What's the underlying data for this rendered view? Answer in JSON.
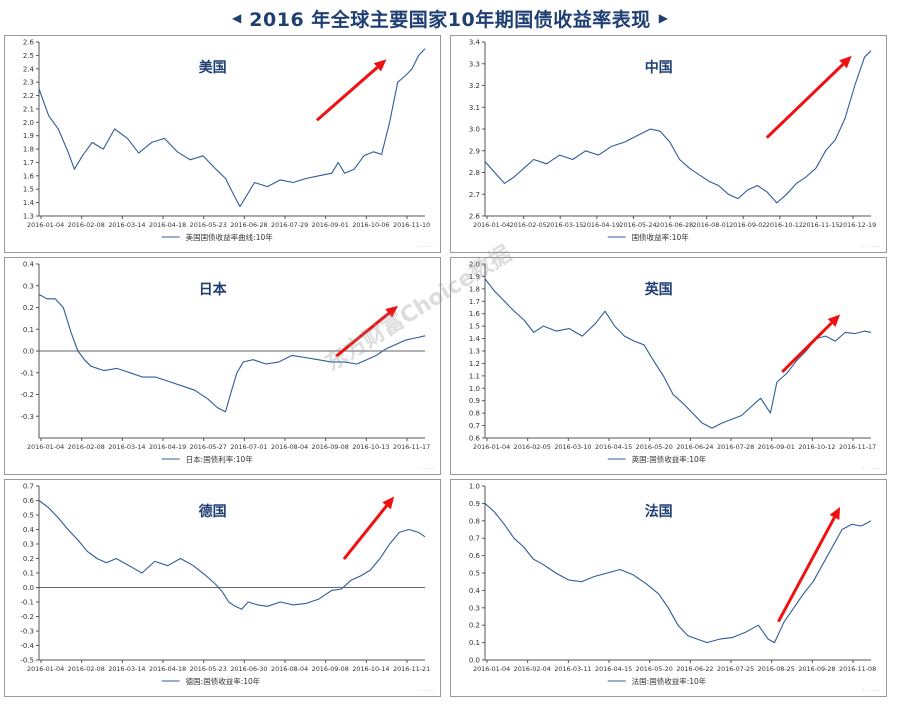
{
  "title": "2016 年全球主要国家10年期国债收益率表现",
  "title_arrow_left": "◀",
  "title_arrow_right": "▶",
  "watermark": "东方财富Choice数据",
  "colors": {
    "line": "#2e5c9a",
    "trend_arrow": "#ee1111",
    "title": "#1f3f73",
    "panel_border": "#9a9a9a",
    "zero_line": "#333333"
  },
  "chart_data": [
    {
      "type": "line",
      "title": "美国",
      "legend": "美国国债收益率曲线:10年",
      "ylim": [
        1.3,
        2.6
      ],
      "yticks": [
        "1.3",
        "1.4",
        "1.5",
        "1.6",
        "1.7",
        "1.8",
        "1.9",
        "2.0",
        "2.1",
        "2.2",
        "2.3",
        "2.4",
        "2.5",
        "2.6"
      ],
      "xticks": [
        "2016-01-04",
        "2016-02-08",
        "2016-03-14",
        "2016-04-18",
        "2016-05-23",
        "2016-06-28",
        "2016-07-29",
        "2016-09-01",
        "2016-10-06",
        "2016-11-10"
      ],
      "zero_line": false,
      "series_points": [
        [
          0,
          2.25
        ],
        [
          6,
          2.05
        ],
        [
          12,
          1.95
        ],
        [
          18,
          1.78
        ],
        [
          22,
          1.65
        ],
        [
          27,
          1.75
        ],
        [
          33,
          1.85
        ],
        [
          40,
          1.8
        ],
        [
          47,
          1.95
        ],
        [
          55,
          1.88
        ],
        [
          62,
          1.77
        ],
        [
          70,
          1.85
        ],
        [
          78,
          1.88
        ],
        [
          86,
          1.78
        ],
        [
          94,
          1.72
        ],
        [
          102,
          1.75
        ],
        [
          110,
          1.65
        ],
        [
          116,
          1.58
        ],
        [
          121,
          1.46
        ],
        [
          125,
          1.37
        ],
        [
          129,
          1.45
        ],
        [
          134,
          1.55
        ],
        [
          142,
          1.52
        ],
        [
          150,
          1.57
        ],
        [
          158,
          1.55
        ],
        [
          166,
          1.58
        ],
        [
          174,
          1.6
        ],
        [
          182,
          1.62
        ],
        [
          186,
          1.7
        ],
        [
          190,
          1.62
        ],
        [
          196,
          1.65
        ],
        [
          202,
          1.75
        ],
        [
          208,
          1.78
        ],
        [
          213,
          1.76
        ],
        [
          218,
          2.0
        ],
        [
          223,
          2.3
        ],
        [
          228,
          2.35
        ],
        [
          232,
          2.4
        ],
        [
          236,
          2.5
        ],
        [
          240,
          2.55
        ]
      ],
      "trend_arrow": [
        [
          0.72,
          0.45
        ],
        [
          0.9,
          0.1
        ]
      ]
    },
    {
      "type": "line",
      "title": "中国",
      "legend": "国债收益率:10年",
      "ylim": [
        2.6,
        3.4
      ],
      "yticks": [
        "2.6",
        "2.7",
        "2.8",
        "2.9",
        "3.0",
        "3.1",
        "3.2",
        "3.3",
        "3.4"
      ],
      "xticks": [
        "2016-01-04",
        "2016-02-05",
        "2016-03-15",
        "2016-04-19",
        "2016-05-24",
        "2016-06-28",
        "2016-08-01",
        "2016-09-02",
        "2016-10-12",
        "2016-11-15",
        "2016-12-19"
      ],
      "zero_line": false,
      "series_points": [
        [
          0,
          2.85
        ],
        [
          6,
          2.8
        ],
        [
          12,
          2.75
        ],
        [
          18,
          2.78
        ],
        [
          24,
          2.82
        ],
        [
          30,
          2.86
        ],
        [
          38,
          2.84
        ],
        [
          46,
          2.88
        ],
        [
          54,
          2.86
        ],
        [
          62,
          2.9
        ],
        [
          70,
          2.88
        ],
        [
          78,
          2.92
        ],
        [
          86,
          2.94
        ],
        [
          94,
          2.97
        ],
        [
          102,
          3.0
        ],
        [
          108,
          2.99
        ],
        [
          114,
          2.94
        ],
        [
          120,
          2.86
        ],
        [
          126,
          2.82
        ],
        [
          132,
          2.79
        ],
        [
          138,
          2.76
        ],
        [
          144,
          2.74
        ],
        [
          150,
          2.7
        ],
        [
          156,
          2.68
        ],
        [
          162,
          2.72
        ],
        [
          168,
          2.74
        ],
        [
          174,
          2.71
        ],
        [
          180,
          2.66
        ],
        [
          186,
          2.7
        ],
        [
          192,
          2.75
        ],
        [
          198,
          2.78
        ],
        [
          204,
          2.82
        ],
        [
          210,
          2.9
        ],
        [
          216,
          2.95
        ],
        [
          222,
          3.05
        ],
        [
          228,
          3.2
        ],
        [
          234,
          3.33
        ],
        [
          238,
          3.36
        ]
      ],
      "trend_arrow": [
        [
          0.73,
          0.55
        ],
        [
          0.95,
          0.08
        ]
      ]
    },
    {
      "type": "line",
      "title": "日本",
      "legend": "日本:国债利率:10年",
      "ylim": [
        -0.4,
        0.4
      ],
      "yticks": [
        "0.4",
        "0.3",
        "0.2",
        "0.1",
        "0.0",
        "-0.1",
        "-0.2",
        "-0.3"
      ],
      "xticks": [
        "2016-01-04",
        "2016-02-08",
        "2016-03-14",
        "2016-04-19",
        "2016-05-27",
        "2016-07-01",
        "2016-08-04",
        "2016-09-08",
        "2016-10-13",
        "2016-11-17"
      ],
      "zero_line": 0,
      "series_points": [
        [
          0,
          0.26
        ],
        [
          5,
          0.24
        ],
        [
          10,
          0.24
        ],
        [
          15,
          0.2
        ],
        [
          20,
          0.08
        ],
        [
          24,
          0.0
        ],
        [
          28,
          -0.04
        ],
        [
          32,
          -0.07
        ],
        [
          40,
          -0.09
        ],
        [
          48,
          -0.08
        ],
        [
          56,
          -0.1
        ],
        [
          64,
          -0.12
        ],
        [
          72,
          -0.12
        ],
        [
          80,
          -0.14
        ],
        [
          88,
          -0.16
        ],
        [
          96,
          -0.18
        ],
        [
          104,
          -0.22
        ],
        [
          110,
          -0.26
        ],
        [
          115,
          -0.28
        ],
        [
          118,
          -0.2
        ],
        [
          122,
          -0.1
        ],
        [
          126,
          -0.05
        ],
        [
          132,
          -0.04
        ],
        [
          140,
          -0.06
        ],
        [
          148,
          -0.05
        ],
        [
          156,
          -0.02
        ],
        [
          164,
          -0.03
        ],
        [
          172,
          -0.04
        ],
        [
          180,
          -0.05
        ],
        [
          188,
          -0.05
        ],
        [
          196,
          -0.06
        ],
        [
          202,
          -0.04
        ],
        [
          208,
          -0.02
        ],
        [
          214,
          0.01
        ],
        [
          220,
          0.03
        ],
        [
          226,
          0.05
        ],
        [
          232,
          0.06
        ],
        [
          238,
          0.07
        ]
      ],
      "trend_arrow": [
        [
          0.77,
          0.53
        ],
        [
          0.93,
          0.24
        ]
      ]
    },
    {
      "type": "line",
      "title": "英国",
      "legend": "英国:国债收益率:10年",
      "ylim": [
        0.6,
        2.0
      ],
      "yticks": [
        "2.0",
        "1.9",
        "1.8",
        "1.7",
        "1.6",
        "1.5",
        "1.4",
        "1.3",
        "1.2",
        "1.1",
        "1.0",
        "0.9",
        "0.8",
        "0.7",
        "0.6"
      ],
      "xticks": [
        "2016-01-04",
        "2016-02-05",
        "2016-03-10",
        "2016-04-15",
        "2016-05-20",
        "2016-06-24",
        "2016-07-28",
        "2016-09-01",
        "2016-10-12",
        "2016-11-17"
      ],
      "zero_line": false,
      "series_points": [
        [
          0,
          1.88
        ],
        [
          6,
          1.78
        ],
        [
          12,
          1.7
        ],
        [
          18,
          1.62
        ],
        [
          24,
          1.55
        ],
        [
          30,
          1.45
        ],
        [
          36,
          1.5
        ],
        [
          44,
          1.46
        ],
        [
          52,
          1.48
        ],
        [
          60,
          1.42
        ],
        [
          68,
          1.52
        ],
        [
          74,
          1.62
        ],
        [
          80,
          1.5
        ],
        [
          86,
          1.42
        ],
        [
          92,
          1.38
        ],
        [
          98,
          1.35
        ],
        [
          104,
          1.22
        ],
        [
          110,
          1.1
        ],
        [
          116,
          0.95
        ],
        [
          122,
          0.88
        ],
        [
          128,
          0.8
        ],
        [
          134,
          0.72
        ],
        [
          140,
          0.68
        ],
        [
          146,
          0.72
        ],
        [
          152,
          0.75
        ],
        [
          158,
          0.78
        ],
        [
          164,
          0.85
        ],
        [
          170,
          0.92
        ],
        [
          176,
          0.8
        ],
        [
          180,
          1.05
        ],
        [
          186,
          1.12
        ],
        [
          192,
          1.22
        ],
        [
          198,
          1.3
        ],
        [
          204,
          1.4
        ],
        [
          210,
          1.42
        ],
        [
          216,
          1.38
        ],
        [
          222,
          1.45
        ],
        [
          228,
          1.44
        ],
        [
          234,
          1.46
        ],
        [
          238,
          1.45
        ]
      ],
      "trend_arrow": [
        [
          0.77,
          0.62
        ],
        [
          0.92,
          0.29
        ]
      ]
    },
    {
      "type": "line",
      "title": "德国",
      "legend": "德国:国债收益率:10年",
      "ylim": [
        -0.5,
        0.7
      ],
      "yticks": [
        "0.7",
        "0.6",
        "0.5",
        "0.4",
        "0.3",
        "0.2",
        "0.1",
        "0.0",
        "-0.1",
        "-0.2",
        "-0.3",
        "-0.4",
        "-0.5"
      ],
      "xticks": [
        "2016-01-04",
        "2016-02-08",
        "2016-03-14",
        "2016-04-18",
        "2016-05-23",
        "2016-06-30",
        "2016-08-04",
        "2016-09-08",
        "2016-10-14",
        "2016-11-21"
      ],
      "zero_line": 0,
      "series_points": [
        [
          0,
          0.6
        ],
        [
          6,
          0.55
        ],
        [
          12,
          0.48
        ],
        [
          18,
          0.4
        ],
        [
          24,
          0.33
        ],
        [
          30,
          0.25
        ],
        [
          36,
          0.2
        ],
        [
          42,
          0.17
        ],
        [
          48,
          0.2
        ],
        [
          56,
          0.15
        ],
        [
          64,
          0.1
        ],
        [
          72,
          0.18
        ],
        [
          80,
          0.15
        ],
        [
          88,
          0.2
        ],
        [
          96,
          0.15
        ],
        [
          104,
          0.08
        ],
        [
          110,
          0.02
        ],
        [
          114,
          -0.03
        ],
        [
          118,
          -0.1
        ],
        [
          122,
          -0.13
        ],
        [
          126,
          -0.15
        ],
        [
          130,
          -0.1
        ],
        [
          136,
          -0.12
        ],
        [
          142,
          -0.13
        ],
        [
          150,
          -0.1
        ],
        [
          158,
          -0.12
        ],
        [
          166,
          -0.11
        ],
        [
          174,
          -0.08
        ],
        [
          182,
          -0.02
        ],
        [
          188,
          -0.01
        ],
        [
          194,
          0.05
        ],
        [
          200,
          0.08
        ],
        [
          206,
          0.12
        ],
        [
          212,
          0.2
        ],
        [
          218,
          0.3
        ],
        [
          224,
          0.38
        ],
        [
          230,
          0.4
        ],
        [
          236,
          0.38
        ],
        [
          240,
          0.35
        ]
      ],
      "trend_arrow": [
        [
          0.79,
          0.42
        ],
        [
          0.92,
          0.06
        ]
      ]
    },
    {
      "type": "line",
      "title": "法国",
      "legend": "法国:国债收益率:10年",
      "ylim": [
        0.0,
        1.0
      ],
      "yticks": [
        "1.0",
        "0.9",
        "0.8",
        "0.7",
        "0.6",
        "0.5",
        "0.4",
        "0.3",
        "0.2",
        "0.1",
        "0.0"
      ],
      "xticks": [
        "2016-01-04",
        "2016-02-04",
        "2016-03-11",
        "2016-04-15",
        "2016-05-20",
        "2016-06-22",
        "2016-07-25",
        "2016-08-25",
        "2016-09-28",
        "2016-11-08"
      ],
      "zero_line": false,
      "series_points": [
        [
          0,
          0.9
        ],
        [
          6,
          0.85
        ],
        [
          12,
          0.78
        ],
        [
          18,
          0.7
        ],
        [
          24,
          0.65
        ],
        [
          30,
          0.58
        ],
        [
          36,
          0.55
        ],
        [
          44,
          0.5
        ],
        [
          52,
          0.46
        ],
        [
          60,
          0.45
        ],
        [
          68,
          0.48
        ],
        [
          76,
          0.5
        ],
        [
          84,
          0.52
        ],
        [
          92,
          0.49
        ],
        [
          100,
          0.44
        ],
        [
          108,
          0.38
        ],
        [
          114,
          0.3
        ],
        [
          120,
          0.2
        ],
        [
          126,
          0.14
        ],
        [
          132,
          0.12
        ],
        [
          138,
          0.1
        ],
        [
          146,
          0.12
        ],
        [
          154,
          0.13
        ],
        [
          162,
          0.16
        ],
        [
          170,
          0.2
        ],
        [
          176,
          0.12
        ],
        [
          180,
          0.1
        ],
        [
          186,
          0.22
        ],
        [
          192,
          0.3
        ],
        [
          198,
          0.38
        ],
        [
          204,
          0.45
        ],
        [
          210,
          0.55
        ],
        [
          216,
          0.65
        ],
        [
          222,
          0.75
        ],
        [
          228,
          0.78
        ],
        [
          234,
          0.77
        ],
        [
          240,
          0.8
        ]
      ],
      "trend_arrow": [
        [
          0.76,
          0.78
        ],
        [
          0.92,
          0.12
        ]
      ]
    }
  ]
}
